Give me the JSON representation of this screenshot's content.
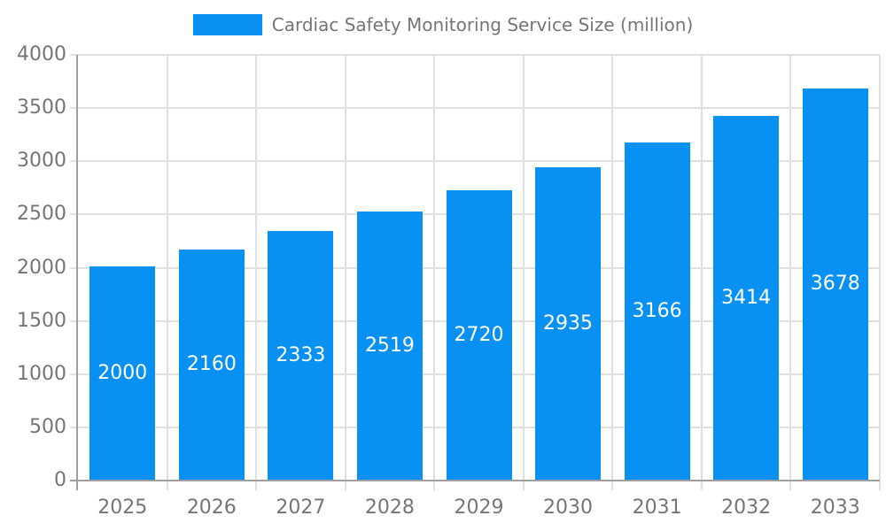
{
  "chart_data": {
    "type": "bar",
    "categories": [
      "2025",
      "2026",
      "2027",
      "2028",
      "2029",
      "2030",
      "2031",
      "2032",
      "2033"
    ],
    "series": [
      {
        "name": "Cardiac Safety Monitoring Service Size (million)",
        "values": [
          2000,
          2160,
          2333,
          2519,
          2720,
          2935,
          3166,
          3414,
          3678
        ]
      }
    ],
    "title": "",
    "xlabel": "",
    "ylabel": "",
    "ylim": [
      0,
      4000
    ],
    "ytick_step": 500,
    "ytick_labels": [
      "0",
      "500",
      "1000",
      "1500",
      "2000",
      "2500",
      "3000",
      "3500",
      "4000"
    ],
    "grid": true,
    "bar_value_labels_shown": true,
    "legend_position": "top-center",
    "colors": {
      "bar": "#0990f3",
      "bar_label_text": "#ffffff",
      "axis_line": "#9e9e9e",
      "grid_line": "#e0e0e0",
      "tick_text": "#757575",
      "legend_text": "#757575",
      "background": "#ffffff"
    }
  }
}
